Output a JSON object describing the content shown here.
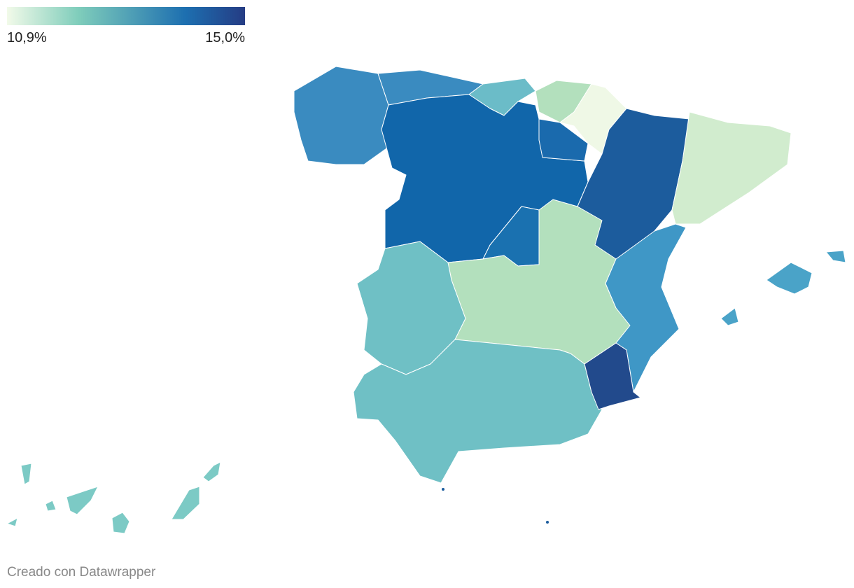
{
  "legend": {
    "min": "10,9%",
    "max": "15,0%"
  },
  "footer": "Creado con Datawrapper"
}
